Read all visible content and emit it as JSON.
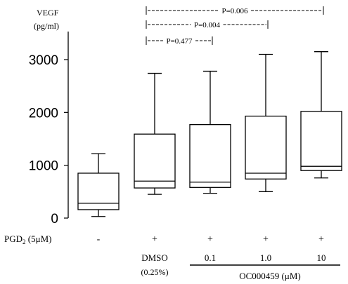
{
  "chart_data": {
    "type": "box",
    "ylabel_lines": [
      "VEGF",
      "(pg/ml)"
    ],
    "ylim": [
      0,
      3300
    ],
    "yticks": [
      0,
      1000,
      2000,
      3000
    ],
    "categories": [
      {
        "pgd2": "-",
        "treatment": "",
        "treatment_sub": ""
      },
      {
        "pgd2": "+",
        "treatment": "DMSO",
        "treatment_sub": "(0.25%)"
      },
      {
        "pgd2": "+",
        "treatment": "0.1",
        "treatment_sub": ""
      },
      {
        "pgd2": "+",
        "treatment": "1.0",
        "treatment_sub": ""
      },
      {
        "pgd2": "+",
        "treatment": "10",
        "treatment_sub": ""
      }
    ],
    "boxes": [
      {
        "min": 30,
        "q1": 160,
        "median": 280,
        "q3": 850,
        "max": 1220
      },
      {
        "min": 450,
        "q1": 570,
        "median": 700,
        "q3": 1590,
        "max": 2740
      },
      {
        "min": 470,
        "q1": 580,
        "median": 680,
        "q3": 1770,
        "max": 2780
      },
      {
        "min": 500,
        "q1": 740,
        "median": 850,
        "q3": 1930,
        "max": 3100
      },
      {
        "min": 760,
        "q1": 900,
        "median": 980,
        "q3": 2020,
        "max": 3150
      }
    ],
    "row_labels": {
      "pgd2_prefix": "PGD",
      "pgd2_sub": "2",
      "pgd2_suffix": " (5μM)"
    },
    "group_label": "OC000459 (μM)",
    "comparisons": [
      {
        "from": 1,
        "to": 4,
        "label": "P=0.006"
      },
      {
        "from": 1,
        "to": 3,
        "label": "P=0.004"
      },
      {
        "from": 1,
        "to": 2,
        "label": "P=0.477"
      }
    ]
  }
}
